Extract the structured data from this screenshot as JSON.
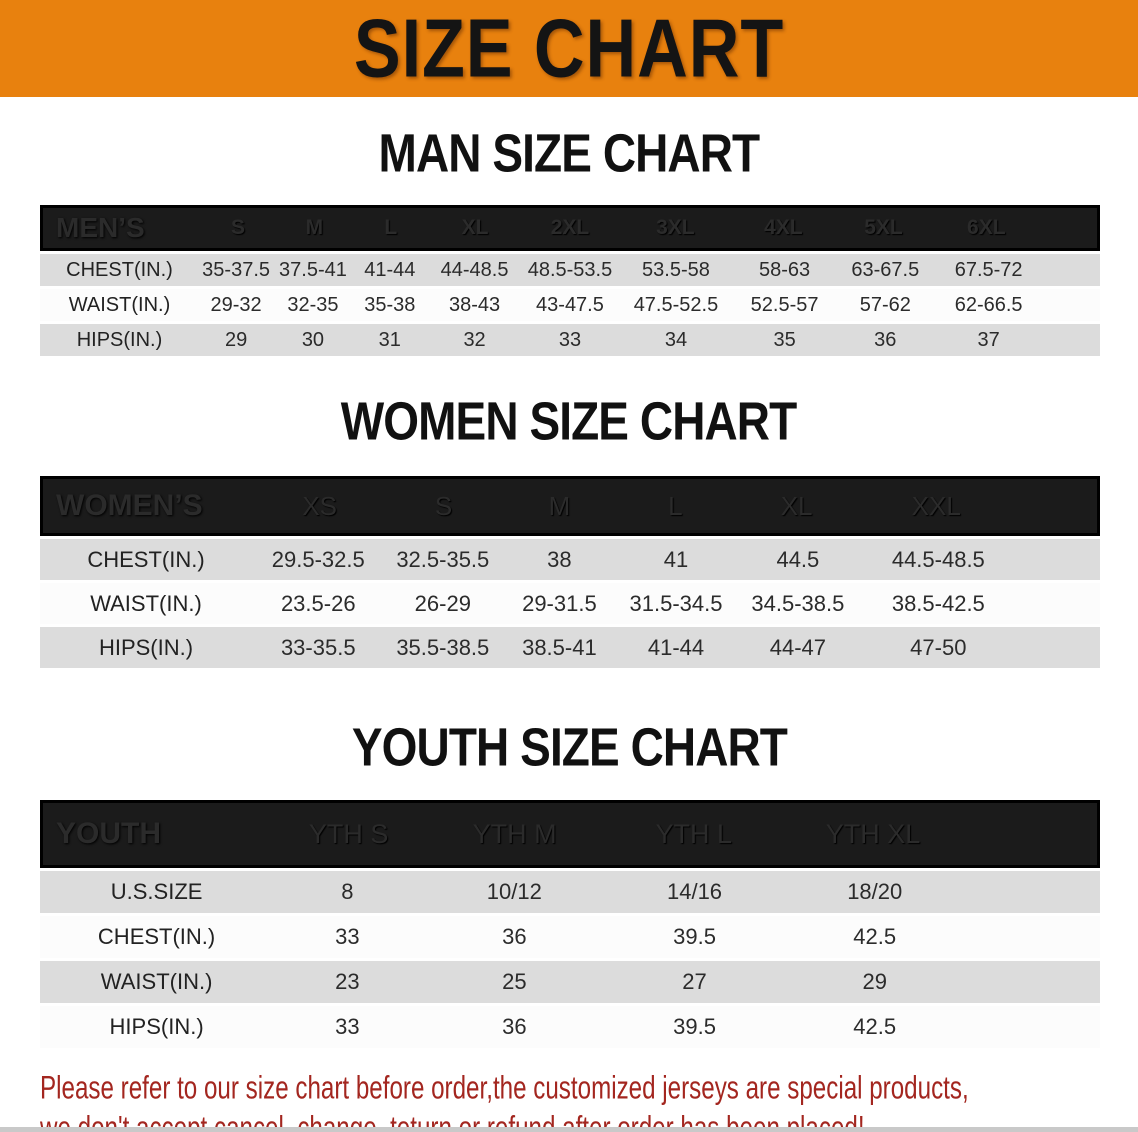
{
  "banner": {
    "title": "SIZE CHART"
  },
  "chart_data": [
    {
      "type": "table",
      "title": "MAN SIZE CHART",
      "group_label": "MEN’S",
      "columns": [
        "S",
        "M",
        "L",
        "XL",
        "2XL",
        "3XL",
        "4XL",
        "5XL",
        "6XL"
      ],
      "rows": [
        {
          "label": "CHEST(IN.)",
          "values": [
            "35-37.5",
            "37.5-41",
            "41-44",
            "44-48.5",
            "48.5-53.5",
            "53.5-58",
            "58-63",
            "63-67.5",
            "67.5-72"
          ]
        },
        {
          "label": "WAIST(IN.)",
          "values": [
            "29-32",
            "32-35",
            "35-38",
            "38-43",
            "43-47.5",
            "47.5-52.5",
            "52.5-57",
            "57-62",
            "62-66.5"
          ]
        },
        {
          "label": "HIPS(IN.)",
          "values": [
            "29",
            "30",
            "31",
            "32",
            "33",
            "34",
            "35",
            "36",
            "37"
          ]
        }
      ]
    },
    {
      "type": "table",
      "title": "WOMEN SIZE CHART",
      "group_label": "WOMEN’S",
      "columns": [
        "XS",
        "S",
        "M",
        "L",
        "XL",
        "XXL"
      ],
      "rows": [
        {
          "label": "CHEST(IN.)",
          "values": [
            "29.5-32.5",
            "32.5-35.5",
            "38",
            "41",
            "44.5",
            "44.5-48.5"
          ]
        },
        {
          "label": "WAIST(IN.)",
          "values": [
            "23.5-26",
            "26-29",
            "29-31.5",
            "31.5-34.5",
            "34.5-38.5",
            "38.5-42.5"
          ]
        },
        {
          "label": "HIPS(IN.)",
          "values": [
            "33-35.5",
            "35.5-38.5",
            "38.5-41",
            "41-44",
            "44-47",
            "47-50"
          ]
        }
      ]
    },
    {
      "type": "table",
      "title": "YOUTH SIZE CHART",
      "group_label": "YOUTH",
      "columns": [
        "YTH S",
        "YTH M",
        "YTH L",
        "YTH XL"
      ],
      "rows": [
        {
          "label": "U.S.SIZE",
          "values": [
            "8",
            "10/12",
            "14/16",
            "18/20"
          ]
        },
        {
          "label": "CHEST(IN.)",
          "values": [
            "33",
            "36",
            "39.5",
            "42.5"
          ]
        },
        {
          "label": "WAIST(IN.)",
          "values": [
            "23",
            "25",
            "27",
            "29"
          ]
        },
        {
          "label": "HIPS(IN.)",
          "values": [
            "33",
            "36",
            "39.5",
            "42.5"
          ]
        }
      ]
    }
  ],
  "disclaimer": {
    "line1": "Please refer to our size chart before order,the customized jerseys are special products,",
    "line2": "we don't accept cancel, change, teturn or refund after order has been placed!"
  },
  "colors": {
    "banner_orange": "#E8810E",
    "header_black": "#1B1B1B",
    "row_gray": "#DCDCDC",
    "row_white": "#FCFCFC",
    "disclaimer_red": "#A3261F"
  }
}
